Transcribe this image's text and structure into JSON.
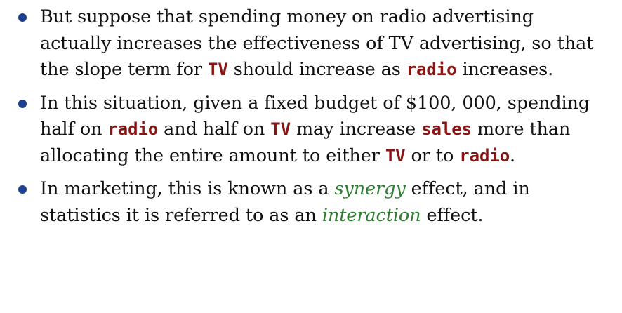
{
  "colors": {
    "bullet": "#1f3f8f",
    "code": "#8a1414",
    "emphasis": "#2e7d32",
    "text": "#111111"
  },
  "bullets": [
    {
      "segments": [
        {
          "text": "But suppose that spending money on radio advertising actually increases the effectiveness of TV advertising, so that the slope term for ",
          "style": "plain"
        },
        {
          "text": "TV",
          "style": "code"
        },
        {
          "text": " should increase as ",
          "style": "plain"
        },
        {
          "text": "radio",
          "style": "code"
        },
        {
          "text": " increases.",
          "style": "plain"
        }
      ]
    },
    {
      "segments": [
        {
          "text": "In this situation, given a fixed budget of $100, 000, spending half on ",
          "style": "plain"
        },
        {
          "text": "radio",
          "style": "code"
        },
        {
          "text": " and half on ",
          "style": "plain"
        },
        {
          "text": "TV",
          "style": "code"
        },
        {
          "text": " may increase ",
          "style": "plain"
        },
        {
          "text": "sales",
          "style": "code"
        },
        {
          "text": " more than allocating the entire amount to either ",
          "style": "plain"
        },
        {
          "text": "TV",
          "style": "code"
        },
        {
          "text": " or to ",
          "style": "plain"
        },
        {
          "text": "radio",
          "style": "code"
        },
        {
          "text": ".",
          "style": "plain"
        }
      ]
    },
    {
      "segments": [
        {
          "text": "In marketing, this is known as a ",
          "style": "plain"
        },
        {
          "text": "synergy",
          "style": "emph"
        },
        {
          "text": " effect, and in statistics it is referred to as an ",
          "style": "plain"
        },
        {
          "text": "interaction",
          "style": "emph"
        },
        {
          "text": " effect.",
          "style": "plain"
        }
      ]
    }
  ]
}
